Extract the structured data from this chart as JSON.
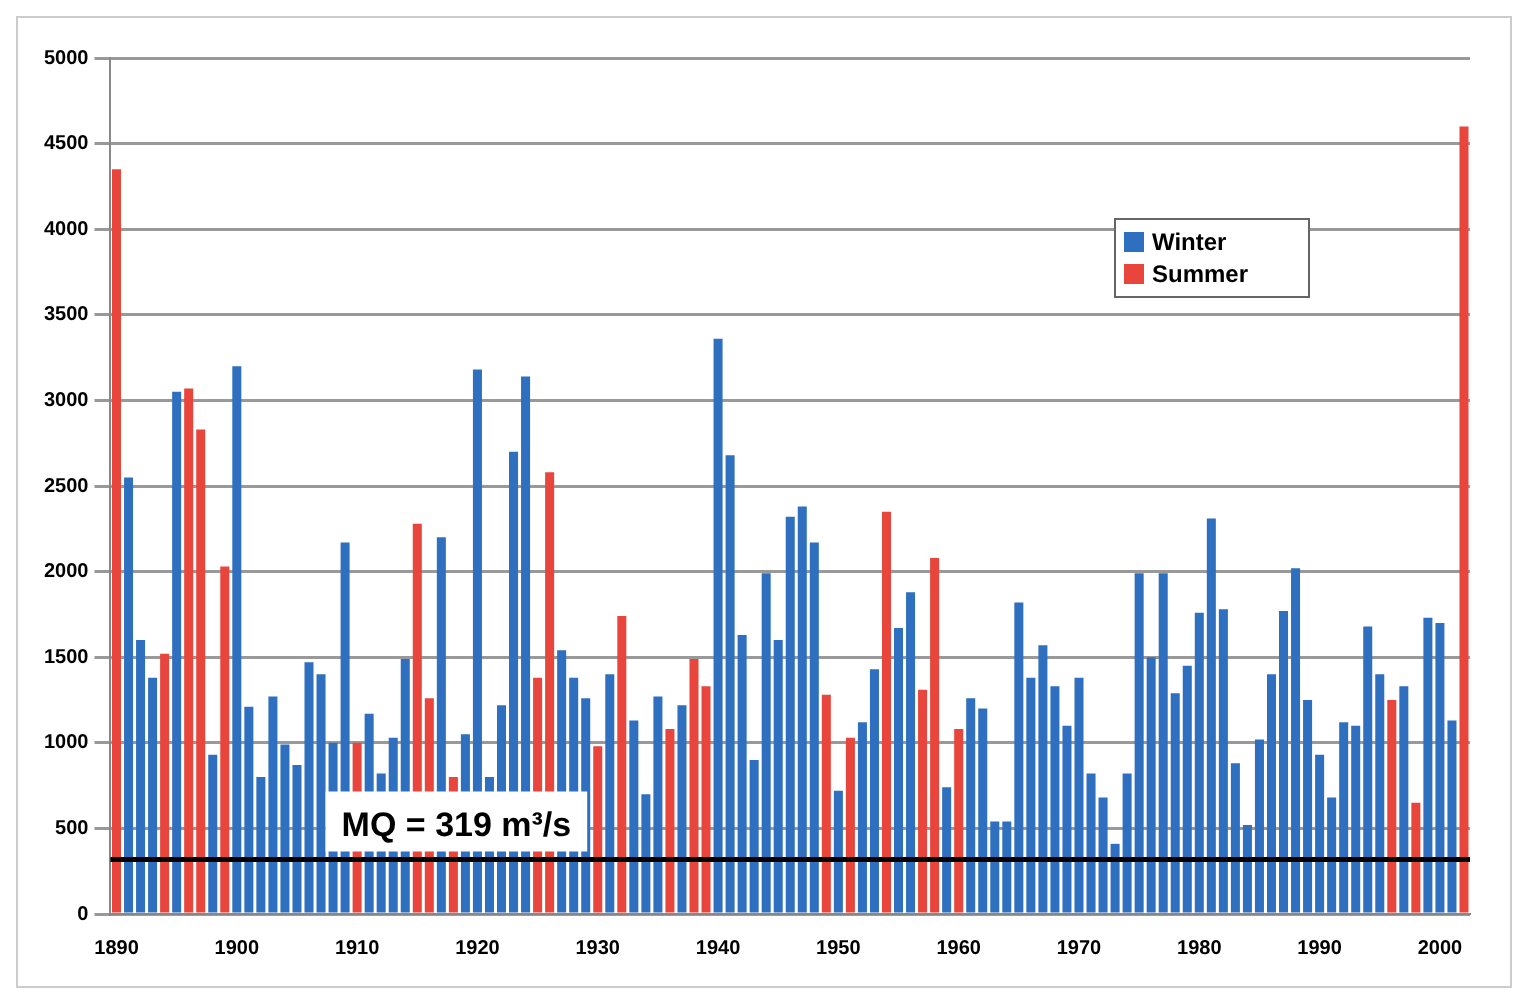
{
  "chart_data": {
    "type": "bar",
    "categories": [
      "1890",
      null,
      null,
      null,
      null,
      null,
      null,
      null,
      null,
      null,
      "1900",
      null,
      null,
      null,
      null,
      null,
      null,
      null,
      null,
      null,
      "1910",
      null,
      null,
      null,
      null,
      null,
      null,
      null,
      null,
      null,
      "1920",
      null,
      null,
      null,
      null,
      null,
      null,
      null,
      null,
      null,
      "1930",
      null,
      null,
      null,
      null,
      null,
      null,
      null,
      null,
      null,
      "1940",
      null,
      null,
      null,
      null,
      null,
      null,
      null,
      null,
      null,
      "1950",
      null,
      null,
      null,
      null,
      null,
      null,
      null,
      null,
      null,
      "1960",
      null,
      null,
      null,
      null,
      null,
      null,
      null,
      null,
      null,
      "1970",
      null,
      null,
      null,
      null,
      null,
      null,
      null,
      null,
      null,
      "1980",
      null,
      null,
      null,
      null,
      null,
      null,
      null,
      null,
      null,
      "1990",
      null,
      null,
      null,
      null,
      null,
      null,
      null,
      null,
      null,
      "2000",
      null,
      null
    ],
    "series": [
      {
        "name": "Winter",
        "color": "#2f6fbf",
        "values": [
          null,
          2550,
          1600,
          1380,
          null,
          3050,
          null,
          null,
          930,
          null,
          3200,
          1210,
          800,
          1270,
          990,
          870,
          1470,
          1400,
          1000,
          2170,
          null,
          1170,
          820,
          1030,
          1490,
          null,
          null,
          2200,
          null,
          1050,
          3180,
          800,
          1220,
          2700,
          3140,
          null,
          null,
          1540,
          1380,
          1260,
          null,
          1400,
          null,
          1130,
          700,
          1270,
          null,
          1220,
          null,
          null,
          3360,
          2680,
          1630,
          900,
          1990,
          1600,
          2320,
          2380,
          2170,
          null,
          720,
          null,
          1120,
          1430,
          null,
          1670,
          1880,
          null,
          null,
          740,
          null,
          1260,
          1200,
          540,
          540,
          1820,
          1380,
          1570,
          1330,
          1100,
          1380,
          820,
          680,
          410,
          820,
          1990,
          1500,
          1990,
          1290,
          1450,
          1760,
          2310,
          1780,
          880,
          520,
          1020,
          1400,
          1770,
          2020,
          1250,
          930,
          680,
          1120,
          1100,
          1680,
          1400,
          null,
          1330,
          null,
          1730,
          1700,
          1130,
          null
        ]
      },
      {
        "name": "Summer",
        "color": "#e8453c",
        "values": [
          4350,
          null,
          null,
          null,
          1520,
          null,
          3070,
          2830,
          null,
          2030,
          null,
          null,
          null,
          null,
          null,
          null,
          null,
          null,
          null,
          null,
          1000,
          null,
          null,
          null,
          null,
          2280,
          1260,
          null,
          800,
          null,
          null,
          null,
          null,
          null,
          null,
          1380,
          2580,
          null,
          null,
          null,
          980,
          null,
          1740,
          null,
          null,
          null,
          1080,
          null,
          1490,
          1330,
          null,
          null,
          null,
          null,
          null,
          null,
          null,
          null,
          null,
          1280,
          null,
          1030,
          null,
          null,
          2350,
          null,
          null,
          1310,
          2080,
          null,
          1080,
          null,
          null,
          null,
          null,
          null,
          null,
          null,
          null,
          null,
          null,
          null,
          null,
          null,
          null,
          null,
          null,
          null,
          null,
          null,
          null,
          null,
          null,
          null,
          null,
          null,
          null,
          null,
          null,
          null,
          null,
          null,
          null,
          null,
          null,
          null,
          1250,
          null,
          650,
          null,
          null,
          null,
          4600
        ]
      }
    ],
    "ylim": [
      0,
      5000
    ],
    "yticks": [
      0,
      500,
      1000,
      1500,
      2000,
      2500,
      3000,
      3500,
      4000,
      4500,
      5000
    ],
    "grid": "y",
    "legend": "top right",
    "ref_lines": [
      {
        "axis": "y",
        "value": 319,
        "label": "MQ = 319 m³/s",
        "color": "#000000"
      }
    ]
  }
}
